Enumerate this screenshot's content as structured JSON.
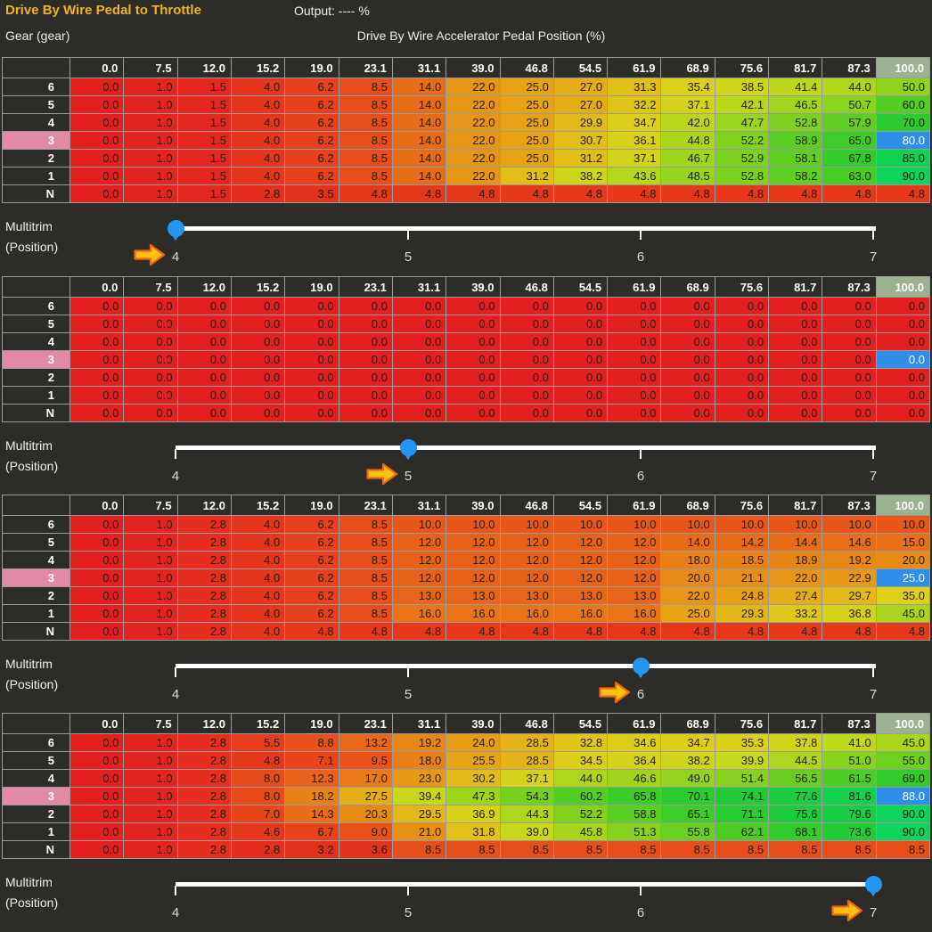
{
  "header": {
    "title": "Drive By Wire Pedal to Throttle",
    "output": "Output: ---- %",
    "row_axis_label": "Gear (gear)",
    "col_axis_label": "Drive By Wire Accelerator Pedal Position (%)"
  },
  "columns": [
    "0.0",
    "7.5",
    "12.0",
    "15.2",
    "19.0",
    "23.1",
    "31.1",
    "39.0",
    "46.8",
    "54.5",
    "61.9",
    "68.9",
    "75.6",
    "81.7",
    "87.3",
    "100.0"
  ],
  "rows": [
    "6",
    "5",
    "4",
    "3",
    "2",
    "1",
    "N"
  ],
  "selection": {
    "row_index": 3,
    "col_index": 15
  },
  "slider": {
    "label_line1": "Multitrim",
    "label_line2": "(Position)",
    "ticks": [
      "4",
      "5",
      "6",
      "7"
    ]
  },
  "tables": [
    {
      "multitrim_position": "4",
      "slider_index": 0,
      "values": [
        [
          "0.0",
          "1.0",
          "1.5",
          "4.0",
          "6.2",
          "8.5",
          "14.0",
          "22.0",
          "25.0",
          "27.0",
          "31.3",
          "35.4",
          "38.5",
          "41.4",
          "44.0",
          "50.0"
        ],
        [
          "0.0",
          "1.0",
          "1.5",
          "4.0",
          "6.2",
          "8.5",
          "14.0",
          "22.0",
          "25.0",
          "27.0",
          "32.2",
          "37.1",
          "42.1",
          "46.5",
          "50.7",
          "60.0"
        ],
        [
          "0.0",
          "1.0",
          "1.5",
          "4.0",
          "6.2",
          "8.5",
          "14.0",
          "22.0",
          "25.0",
          "29.9",
          "34.7",
          "42.0",
          "47.7",
          "52.8",
          "57.9",
          "70.0"
        ],
        [
          "0.0",
          "1.0",
          "1.5",
          "4.0",
          "6.2",
          "8.5",
          "14.0",
          "22.0",
          "25.0",
          "30.7",
          "36.1",
          "44.8",
          "52.2",
          "58.9",
          "65.0",
          "80.0"
        ],
        [
          "0.0",
          "1.0",
          "1.5",
          "4.0",
          "6.2",
          "8.5",
          "14.0",
          "22.0",
          "25.0",
          "31.2",
          "37.1",
          "46.7",
          "52.9",
          "58.1",
          "67.8",
          "85.0"
        ],
        [
          "0.0",
          "1.0",
          "1.5",
          "4.0",
          "6.2",
          "8.5",
          "14.0",
          "22.0",
          "31.2",
          "38.2",
          "43.6",
          "48.5",
          "52.8",
          "58.2",
          "63.0",
          "90.0"
        ],
        [
          "0.0",
          "1.0",
          "1.5",
          "2.8",
          "3.5",
          "4.8",
          "4.8",
          "4.8",
          "4.8",
          "4.8",
          "4.8",
          "4.8",
          "4.8",
          "4.8",
          "4.8",
          "4.8"
        ]
      ]
    },
    {
      "multitrim_position": "5",
      "slider_index": 1,
      "values": [
        [
          "0.0",
          "0.0",
          "0.0",
          "0.0",
          "0.0",
          "0.0",
          "0.0",
          "0.0",
          "0.0",
          "0.0",
          "0.0",
          "0.0",
          "0.0",
          "0.0",
          "0.0",
          "0.0"
        ],
        [
          "0.0",
          "0.0",
          "0.0",
          "0.0",
          "0.0",
          "0.0",
          "0.0",
          "0.0",
          "0.0",
          "0.0",
          "0.0",
          "0.0",
          "0.0",
          "0.0",
          "0.0",
          "0.0"
        ],
        [
          "0.0",
          "0.0",
          "0.0",
          "0.0",
          "0.0",
          "0.0",
          "0.0",
          "0.0",
          "0.0",
          "0.0",
          "0.0",
          "0.0",
          "0.0",
          "0.0",
          "0.0",
          "0.0"
        ],
        [
          "0.0",
          "0.0",
          "0.0",
          "0.0",
          "0.0",
          "0.0",
          "0.0",
          "0.0",
          "0.0",
          "0.0",
          "0.0",
          "0.0",
          "0.0",
          "0.0",
          "0.0",
          "0.0"
        ],
        [
          "0.0",
          "0.0",
          "0.0",
          "0.0",
          "0.0",
          "0.0",
          "0.0",
          "0.0",
          "0.0",
          "0.0",
          "0.0",
          "0.0",
          "0.0",
          "0.0",
          "0.0",
          "0.0"
        ],
        [
          "0.0",
          "0.0",
          "0.0",
          "0.0",
          "0.0",
          "0.0",
          "0.0",
          "0.0",
          "0.0",
          "0.0",
          "0.0",
          "0.0",
          "0.0",
          "0.0",
          "0.0",
          "0.0"
        ],
        [
          "0.0",
          "0.0",
          "0.0",
          "0.0",
          "0.0",
          "0.0",
          "0.0",
          "0.0",
          "0.0",
          "0.0",
          "0.0",
          "0.0",
          "0.0",
          "0.0",
          "0.0",
          "0.0"
        ]
      ]
    },
    {
      "multitrim_position": "6",
      "slider_index": 2,
      "values": [
        [
          "0.0",
          "1.0",
          "2.8",
          "4.0",
          "6.2",
          "8.5",
          "10.0",
          "10.0",
          "10.0",
          "10.0",
          "10.0",
          "10.0",
          "10.0",
          "10.0",
          "10.0",
          "10.0"
        ],
        [
          "0.0",
          "1.0",
          "2.8",
          "4.0",
          "6.2",
          "8.5",
          "12.0",
          "12.0",
          "12.0",
          "12.0",
          "12.0",
          "14.0",
          "14.2",
          "14.4",
          "14.6",
          "15.0"
        ],
        [
          "0.0",
          "1.0",
          "2.8",
          "4.0",
          "6.2",
          "8.5",
          "12.0",
          "12.0",
          "12.0",
          "12.0",
          "12.0",
          "18.0",
          "18.5",
          "18.9",
          "19.2",
          "20.0"
        ],
        [
          "0.0",
          "1.0",
          "2.8",
          "4.0",
          "6.2",
          "8.5",
          "12.0",
          "12.0",
          "12.0",
          "12.0",
          "12.0",
          "20.0",
          "21.1",
          "22.0",
          "22.9",
          "25.0"
        ],
        [
          "0.0",
          "1.0",
          "2.8",
          "4.0",
          "6.2",
          "8.5",
          "13.0",
          "13.0",
          "13.0",
          "13.0",
          "13.0",
          "22.0",
          "24.8",
          "27.4",
          "29.7",
          "35.0"
        ],
        [
          "0.0",
          "1.0",
          "2.8",
          "4.0",
          "6.2",
          "8.5",
          "16.0",
          "16.0",
          "16.0",
          "16.0",
          "16.0",
          "25.0",
          "29.3",
          "33.2",
          "36.8",
          "45.0"
        ],
        [
          "0.0",
          "1.0",
          "2.8",
          "4.0",
          "4.8",
          "4.8",
          "4.8",
          "4.8",
          "4.8",
          "4.8",
          "4.8",
          "4.8",
          "4.8",
          "4.8",
          "4.8",
          "4.8"
        ]
      ]
    },
    {
      "multitrim_position": "7",
      "slider_index": 3,
      "values": [
        [
          "0.0",
          "1.0",
          "2.8",
          "5.5",
          "8.8",
          "13.2",
          "19.2",
          "24.0",
          "28.5",
          "32.8",
          "34.6",
          "34.7",
          "35.3",
          "37.8",
          "41.0",
          "45.0"
        ],
        [
          "0.0",
          "1.0",
          "2.8",
          "4.8",
          "7.1",
          "9.5",
          "18.0",
          "25.5",
          "28.5",
          "34.5",
          "36.4",
          "38.2",
          "39.9",
          "44.5",
          "51.0",
          "55.0"
        ],
        [
          "0.0",
          "1.0",
          "2.8",
          "8.0",
          "12.3",
          "17.0",
          "23.0",
          "30.2",
          "37.1",
          "44.0",
          "46.6",
          "49.0",
          "51.4",
          "56.5",
          "61.5",
          "69.0"
        ],
        [
          "0.0",
          "1.0",
          "2.8",
          "8.0",
          "18.2",
          "27.5",
          "39.4",
          "47.3",
          "54.3",
          "60.2",
          "65.8",
          "70.1",
          "74.1",
          "77.6",
          "81.6",
          "88.0"
        ],
        [
          "0.0",
          "1.0",
          "2.8",
          "7.0",
          "14.3",
          "20.3",
          "29.5",
          "36.9",
          "44.3",
          "52.2",
          "58.8",
          "65.1",
          "71.1",
          "75.6",
          "79.6",
          "90.0"
        ],
        [
          "0.0",
          "1.0",
          "2.8",
          "4.6",
          "6.7",
          "9.0",
          "21.0",
          "31.8",
          "39.0",
          "45.8",
          "51.3",
          "55.8",
          "62.1",
          "68.1",
          "73.6",
          "90.0"
        ],
        [
          "0.0",
          "1.0",
          "2.8",
          "2.8",
          "3.2",
          "3.6",
          "8.5",
          "8.5",
          "8.5",
          "8.5",
          "8.5",
          "8.5",
          "8.5",
          "8.5",
          "8.5",
          "8.5"
        ]
      ]
    }
  ],
  "colors": {
    "background": "#2d2c28",
    "grid_line": "#9b9b9b",
    "title_text": "#f0b41e",
    "body_text": "#f0efe9",
    "cell_text": "#241e15",
    "selected_cell_bg": "#2e8ee8",
    "selected_cell_text": "#ffffff",
    "selected_row_header_bg": "#e289a5",
    "selected_row_header_text": "#ffffff",
    "selected_col_header_bg": "#9cb092",
    "selected_col_header_text": "#ffffff",
    "slider_track": "#ffffff",
    "slider_thumb": "#2196f3",
    "arrow_fill": "#ffc20e",
    "arrow_stroke": "#f06414",
    "heatmap_stops": [
      [
        0,
        "#e41f1f"
      ],
      [
        5,
        "#e63a1c"
      ],
      [
        10,
        "#e8571a"
      ],
      [
        15,
        "#e87018"
      ],
      [
        20,
        "#e88a16"
      ],
      [
        25,
        "#e8a216"
      ],
      [
        30,
        "#e2ba18"
      ],
      [
        35,
        "#dcd018"
      ],
      [
        40,
        "#c6d81a"
      ],
      [
        45,
        "#aad61c"
      ],
      [
        50,
        "#8ed41e"
      ],
      [
        55,
        "#70d020"
      ],
      [
        60,
        "#54ce24"
      ],
      [
        65,
        "#3ecc28"
      ],
      [
        70,
        "#2ccc30"
      ],
      [
        75,
        "#20cc3a"
      ],
      [
        80,
        "#18ce46"
      ],
      [
        85,
        "#12d152"
      ],
      [
        90,
        "#0ed45c"
      ],
      [
        100,
        "#0ad862"
      ]
    ]
  }
}
